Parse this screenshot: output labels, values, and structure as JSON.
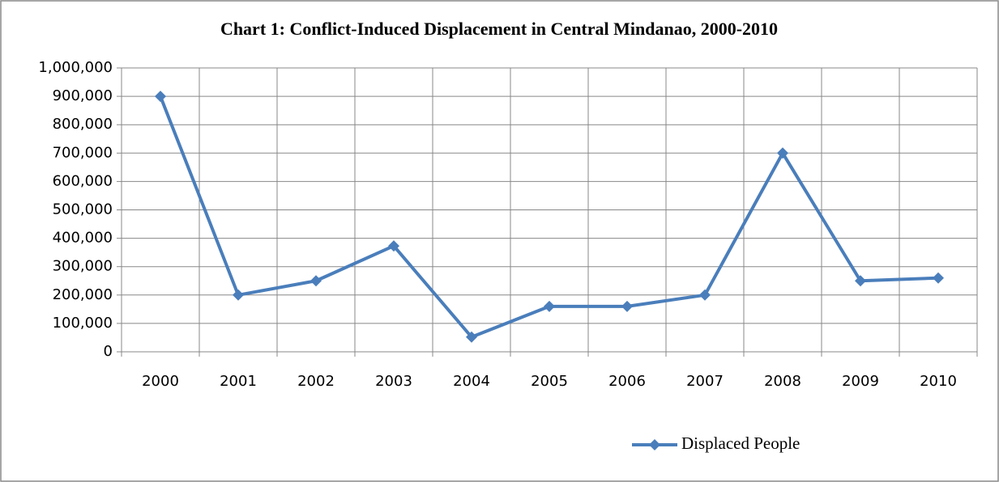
{
  "chart_data": {
    "type": "line",
    "title": "Chart 1: Conflict-Induced Displacement in Central Mindanao, 2000-2010",
    "categories": [
      "2000",
      "2001",
      "2002",
      "2003",
      "2004",
      "2005",
      "2006",
      "2007",
      "2008",
      "2009",
      "2010"
    ],
    "series": [
      {
        "name": "Displaced People",
        "color": "#4a7ebb",
        "values": [
          900000,
          200000,
          250000,
          373000,
          52000,
          160000,
          160000,
          200000,
          700000,
          250000,
          260000
        ]
      }
    ],
    "ylim": [
      0,
      1000000
    ],
    "yticks": [
      {
        "value": 0,
        "label": "0"
      },
      {
        "value": 100000,
        "label": "100,000"
      },
      {
        "value": 200000,
        "label": "200,000"
      },
      {
        "value": 300000,
        "label": "300,000"
      },
      {
        "value": 400000,
        "label": "400,000"
      },
      {
        "value": 500000,
        "label": "500,000"
      },
      {
        "value": 600000,
        "label": "600,000"
      },
      {
        "value": 700000,
        "label": "700,000"
      },
      {
        "value": 800000,
        "label": "800,000"
      },
      {
        "value": 900000,
        "label": "900,000"
      },
      {
        "value": 1000000,
        "label": "1,000,000"
      }
    ],
    "grid": true,
    "legend": "bottom"
  }
}
